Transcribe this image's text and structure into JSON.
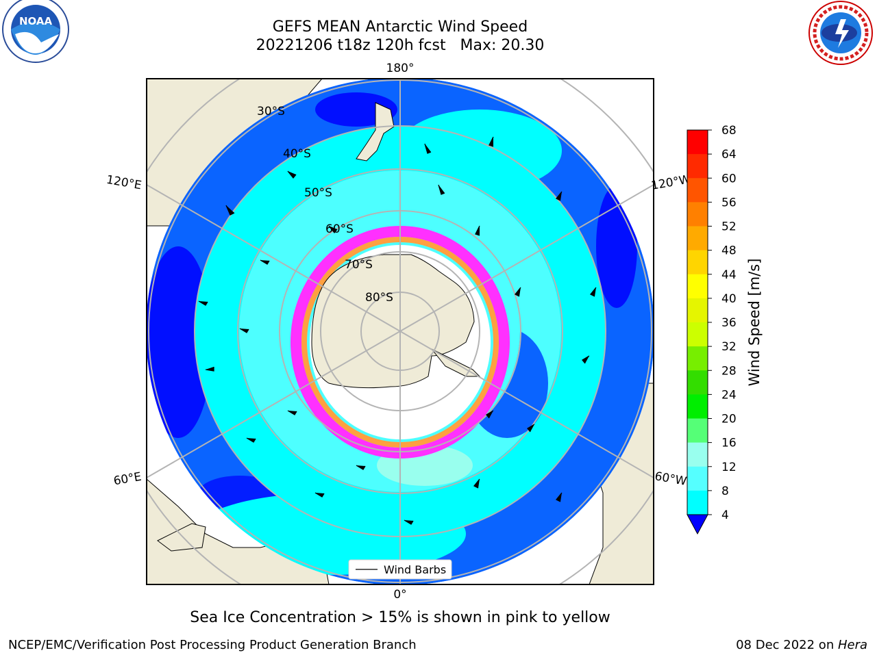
{
  "header": {
    "title_line1": "GEFS MEAN Antarctic Wind Speed",
    "title_line2": "20221206 t18z 120h fcst   Max: 20.30"
  },
  "logos": {
    "left": "NOAA",
    "left_ring_text": "NATIONAL OCEANIC AND ATMOSPHERIC ADMINISTRATION · U.S. DEPARTMENT OF COMMERCE",
    "right_ring_text": "NATIONAL WEATHER SERVICE"
  },
  "map": {
    "longitude_labels": [
      "180°",
      "120°E",
      "120°W",
      "60°E",
      "60°W",
      "0°"
    ],
    "latitude_labels": [
      "30°S",
      "40°S",
      "50°S",
      "60°S",
      "70°S",
      "80°S"
    ],
    "legend_label": "Wind Barbs",
    "colors": {
      "land": "#efebd7",
      "ocean_low": "#0000ff",
      "ocean_4": "#0a64ff",
      "ocean_8": "#00ffff",
      "ocean_12": "#4dffff",
      "ice_edge": "#ff30ff",
      "ice_mid": "#ffa040"
    }
  },
  "colorbar": {
    "label": "Wind Speed [m/s]",
    "ticks": [
      "68",
      "64",
      "60",
      "56",
      "52",
      "48",
      "44",
      "40",
      "36",
      "32",
      "28",
      "24",
      "20",
      "16",
      "12",
      "8",
      "4"
    ],
    "colors": [
      "#ff0000",
      "#ff2a00",
      "#ff5500",
      "#ff8000",
      "#ffaa00",
      "#ffd500",
      "#ffff00",
      "#e5f500",
      "#ccff00",
      "#77ee00",
      "#33dd00",
      "#00ee00",
      "#55ff77",
      "#99ffee",
      "#55ffff",
      "#00ffff",
      "#0a64ff"
    ],
    "extend_color": "#0000ff"
  },
  "caption": "Sea Ice Concentration > 15% is shown in pink to yellow",
  "footer": {
    "left": "NCEP/EMC/Verification Post Processing Product Generation Branch",
    "right_prefix": "08 Dec 2022 on ",
    "right_host": "Hera"
  }
}
